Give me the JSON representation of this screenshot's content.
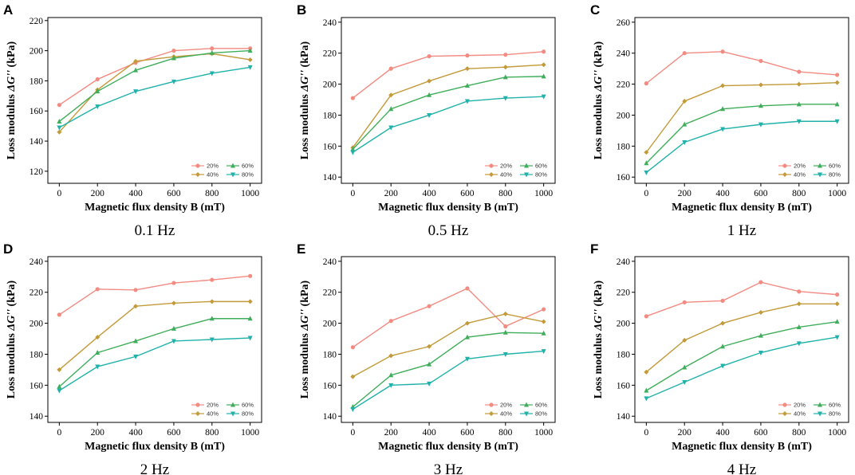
{
  "chart_data": [
    {
      "type": "line",
      "letter": "A",
      "freq": "0.1 Hz",
      "xlabel": "Magnetic flux density B (mT)",
      "ylabel_prefix": "Loss modulus ",
      "ylabel_symbol": "ΔG''",
      "ylabel_unit": " (kPa)",
      "x": [
        0,
        200,
        400,
        600,
        800,
        1000
      ],
      "ylim": [
        112,
        222
      ],
      "yticks": [
        120,
        140,
        160,
        180,
        200,
        220
      ],
      "series": [
        {
          "name": "20%",
          "color": "#f28b82",
          "marker": "circle",
          "values": [
            164,
            181,
            192,
            200,
            201.5,
            201.5
          ]
        },
        {
          "name": "40%",
          "color": "#c39a3a",
          "marker": "diamond",
          "values": [
            146,
            174,
            193,
            196,
            198,
            194
          ]
        },
        {
          "name": "60%",
          "color": "#3fae5a",
          "marker": "triangle-up",
          "values": [
            153,
            173,
            187,
            195,
            198.5,
            200
          ]
        },
        {
          "name": "80%",
          "color": "#20b2aa",
          "marker": "triangle-down",
          "values": [
            149,
            163,
            173,
            179.5,
            185,
            189
          ]
        }
      ]
    },
    {
      "type": "line",
      "letter": "B",
      "freq": "0.5 Hz",
      "xlabel": "Magnetic flux density B (mT)",
      "ylabel_prefix": "Loss modulus ",
      "ylabel_symbol": "ΔG''",
      "ylabel_unit": " (kPa)",
      "x": [
        0,
        200,
        400,
        600,
        800,
        1000
      ],
      "ylim": [
        136,
        243
      ],
      "yticks": [
        140,
        160,
        180,
        200,
        220,
        240
      ],
      "series": [
        {
          "name": "20%",
          "color": "#f28b82",
          "marker": "circle",
          "values": [
            191,
            210,
            218,
            218.5,
            219,
            221
          ]
        },
        {
          "name": "40%",
          "color": "#c39a3a",
          "marker": "diamond",
          "values": [
            159,
            193,
            202,
            210,
            211,
            212.5
          ]
        },
        {
          "name": "60%",
          "color": "#3fae5a",
          "marker": "triangle-up",
          "values": [
            158,
            184,
            193,
            199,
            204.5,
            205
          ]
        },
        {
          "name": "80%",
          "color": "#20b2aa",
          "marker": "triangle-down",
          "values": [
            156,
            172,
            180,
            189,
            191,
            192
          ]
        }
      ]
    },
    {
      "type": "line",
      "letter": "C",
      "freq": "1 Hz",
      "xlabel": "Magnetic flux density B (mT)",
      "ylabel_prefix": "Loss modulus ",
      "ylabel_symbol": "ΔG''",
      "ylabel_unit": " (kPa)",
      "x": [
        0,
        200,
        400,
        600,
        800,
        1000
      ],
      "ylim": [
        156,
        263
      ],
      "yticks": [
        160,
        180,
        200,
        220,
        240,
        260
      ],
      "series": [
        {
          "name": "20%",
          "color": "#f28b82",
          "marker": "circle",
          "values": [
            220.5,
            240,
            241,
            235,
            228,
            226
          ]
        },
        {
          "name": "40%",
          "color": "#c39a3a",
          "marker": "diamond",
          "values": [
            176,
            209,
            219,
            219.5,
            220,
            221
          ]
        },
        {
          "name": "60%",
          "color": "#3fae5a",
          "marker": "triangle-up",
          "values": [
            169,
            194,
            204,
            206,
            207,
            207
          ]
        },
        {
          "name": "80%",
          "color": "#20b2aa",
          "marker": "triangle-down",
          "values": [
            163,
            182.5,
            191,
            194,
            196,
            196
          ]
        }
      ]
    },
    {
      "type": "line",
      "letter": "D",
      "freq": "2 Hz",
      "xlabel": "Magnetic flux density B (mT)",
      "ylabel_prefix": "Loss modulus ",
      "ylabel_symbol": "ΔG''",
      "ylabel_unit": " (kPa)",
      "x": [
        0,
        200,
        400,
        600,
        800,
        1000
      ],
      "ylim": [
        136,
        243
      ],
      "yticks": [
        140,
        160,
        180,
        200,
        220,
        240
      ],
      "series": [
        {
          "name": "20%",
          "color": "#f28b82",
          "marker": "circle",
          "values": [
            205.5,
            222,
            221.5,
            226,
            228,
            230.5
          ]
        },
        {
          "name": "40%",
          "color": "#c39a3a",
          "marker": "diamond",
          "values": [
            170,
            191,
            211,
            213,
            214,
            214
          ]
        },
        {
          "name": "60%",
          "color": "#3fae5a",
          "marker": "triangle-up",
          "values": [
            159,
            181,
            188.5,
            196.5,
            203,
            203
          ]
        },
        {
          "name": "80%",
          "color": "#20b2aa",
          "marker": "triangle-down",
          "values": [
            156.5,
            172,
            178.5,
            188.5,
            189.5,
            190.5
          ]
        }
      ]
    },
    {
      "type": "line",
      "letter": "E",
      "freq": "3 Hz",
      "xlabel": "Magnetic flux density B (mT)",
      "ylabel_prefix": "Loss modulus ",
      "ylabel_symbol": "ΔG''",
      "ylabel_unit": " (kPa)",
      "x": [
        0,
        200,
        400,
        600,
        800,
        1000
      ],
      "ylim": [
        136,
        243
      ],
      "yticks": [
        140,
        160,
        180,
        200,
        220,
        240
      ],
      "series": [
        {
          "name": "20%",
          "color": "#f28b82",
          "marker": "circle",
          "values": [
            184.5,
            201.5,
            211,
            222.5,
            198,
            209
          ]
        },
        {
          "name": "40%",
          "color": "#c39a3a",
          "marker": "diamond",
          "values": [
            165.5,
            179,
            185,
            200,
            206,
            201
          ]
        },
        {
          "name": "60%",
          "color": "#3fae5a",
          "marker": "triangle-up",
          "values": [
            146,
            166.5,
            173.5,
            191,
            194,
            193.5
          ]
        },
        {
          "name": "80%",
          "color": "#20b2aa",
          "marker": "triangle-down",
          "values": [
            144.5,
            160,
            161,
            177,
            180,
            182
          ]
        }
      ]
    },
    {
      "type": "line",
      "letter": "F",
      "freq": "4 Hz",
      "xlabel": "Magnetic flux density B (mT)",
      "ylabel_prefix": "Loss modulus ",
      "ylabel_symbol": "ΔG''",
      "ylabel_unit": " (kPa)",
      "x": [
        0,
        200,
        400,
        600,
        800,
        1000
      ],
      "ylim": [
        136,
        243
      ],
      "yticks": [
        140,
        160,
        180,
        200,
        220,
        240
      ],
      "series": [
        {
          "name": "20%",
          "color": "#f28b82",
          "marker": "circle",
          "values": [
            204.5,
            213.5,
            214.5,
            226.5,
            220.5,
            218.5
          ]
        },
        {
          "name": "40%",
          "color": "#c39a3a",
          "marker": "diamond",
          "values": [
            168.5,
            189,
            200,
            207,
            212.5,
            212.5
          ]
        },
        {
          "name": "60%",
          "color": "#3fae5a",
          "marker": "triangle-up",
          "values": [
            156.5,
            171.5,
            185,
            192,
            197.5,
            201
          ]
        },
        {
          "name": "80%",
          "color": "#20b2aa",
          "marker": "triangle-down",
          "values": [
            151.5,
            162,
            172.5,
            181,
            187,
            191
          ]
        }
      ]
    }
  ]
}
